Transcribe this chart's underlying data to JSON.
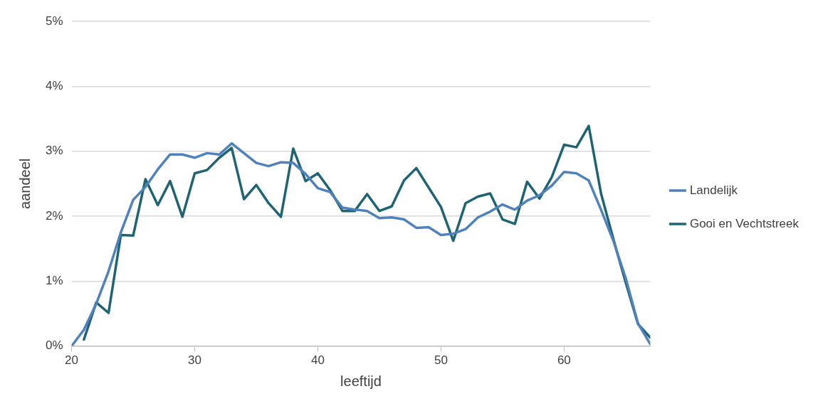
{
  "chart_data": {
    "type": "line",
    "xlabel": "leeftijd",
    "ylabel": "aandeel",
    "x": [
      20,
      21,
      22,
      23,
      24,
      25,
      26,
      27,
      28,
      29,
      30,
      31,
      32,
      33,
      34,
      35,
      36,
      37,
      38,
      39,
      40,
      41,
      42,
      43,
      44,
      45,
      46,
      47,
      48,
      49,
      50,
      51,
      52,
      53,
      54,
      55,
      56,
      57,
      58,
      59,
      60,
      61,
      62,
      63,
      64,
      65,
      66,
      67
    ],
    "series": [
      {
        "name": "Landelijk",
        "color": "#4f81bd",
        "values": [
          0,
          0.25,
          0.65,
          1.15,
          1.75,
          2.25,
          2.45,
          2.72,
          2.95,
          2.95,
          2.9,
          2.97,
          2.95,
          3.12,
          2.97,
          2.82,
          2.77,
          2.83,
          2.82,
          2.65,
          2.43,
          2.37,
          2.13,
          2.1,
          2.08,
          1.97,
          1.98,
          1.95,
          1.82,
          1.83,
          1.71,
          1.73,
          1.8,
          1.98,
          2.07,
          2.18,
          2.1,
          2.24,
          2.32,
          2.47,
          2.68,
          2.66,
          2.55,
          2.1,
          1.62,
          1.05,
          0.35,
          0.03
        ]
      },
      {
        "name": "Gooi en Vechtstreek",
        "color": "#1f6473",
        "values": [
          null,
          0.1,
          0.67,
          0.51,
          1.71,
          1.7,
          2.57,
          2.17,
          2.54,
          1.99,
          2.66,
          2.71,
          2.9,
          3.05,
          2.26,
          2.48,
          2.2,
          1.99,
          3.04,
          2.54,
          2.66,
          2.4,
          2.08,
          2.08,
          2.34,
          2.08,
          2.15,
          2.55,
          2.74,
          2.44,
          2.14,
          1.62,
          2.2,
          2.3,
          2.35,
          1.95,
          1.88,
          2.53,
          2.27,
          2.6,
          3.1,
          3.06,
          3.39,
          2.35,
          1.65,
          0.98,
          0.34,
          0.13
        ]
      }
    ],
    "xlim": [
      20,
      67
    ],
    "xticks": [
      20,
      30,
      40,
      50,
      60
    ],
    "ylim": [
      0,
      5
    ],
    "yticks": [
      {
        "value": 0,
        "label": "0%"
      },
      {
        "value": 1,
        "label": "1%"
      },
      {
        "value": 2,
        "label": "2%"
      },
      {
        "value": 3,
        "label": "3%"
      },
      {
        "value": 4,
        "label": "4%"
      },
      {
        "value": 5,
        "label": "5%"
      }
    ],
    "grid": "y",
    "legend": "right",
    "marker": "none",
    "line_style": "solid"
  }
}
